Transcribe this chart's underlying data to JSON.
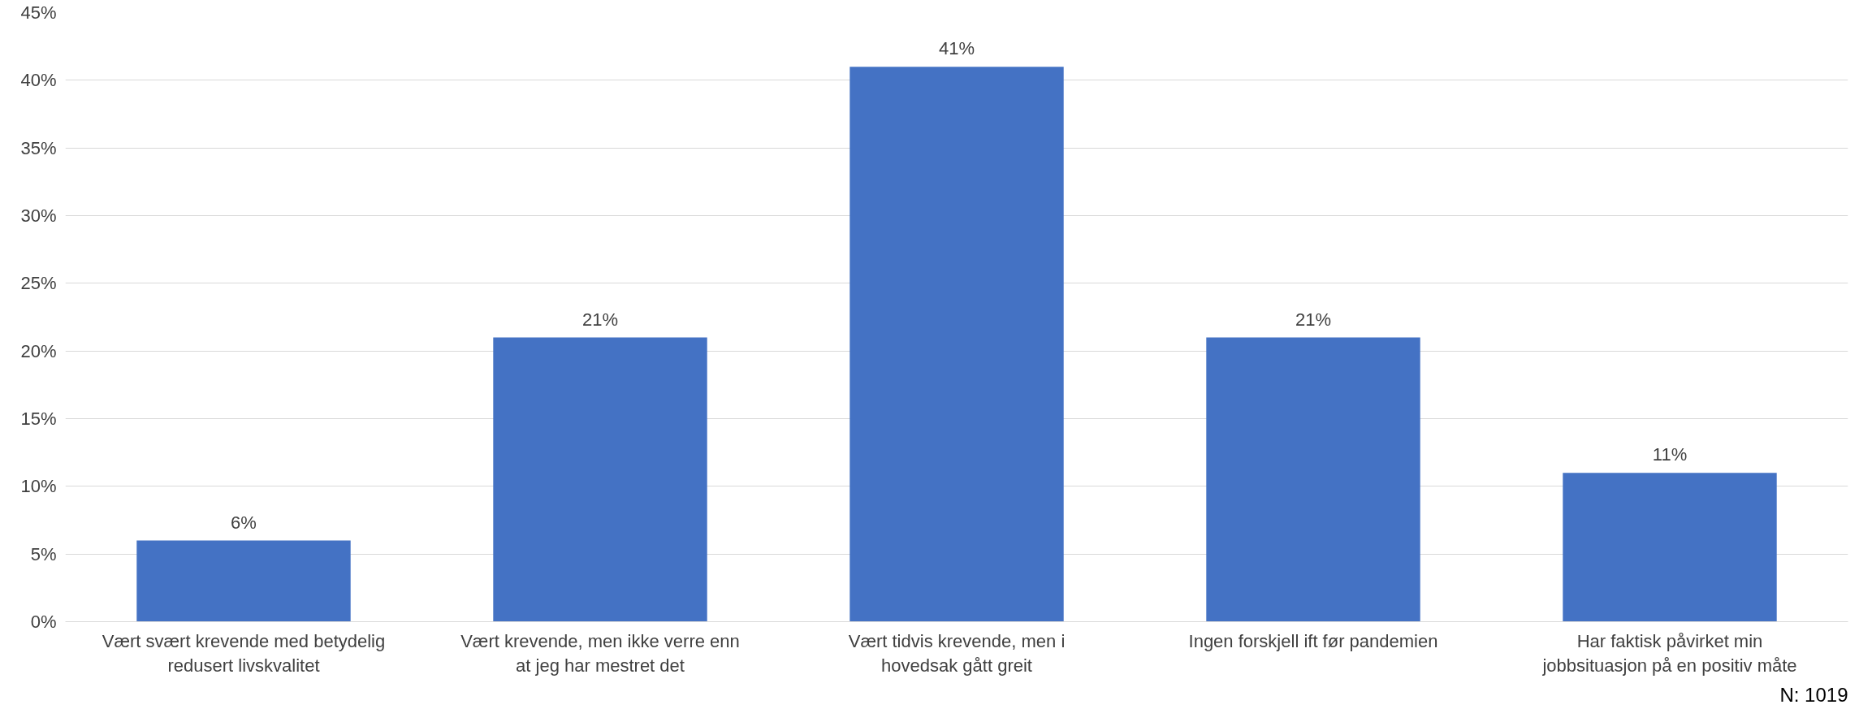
{
  "chart_data": {
    "type": "bar",
    "categories": [
      "Vært svært krevende med betydelig redusert livskvalitet",
      "Vært krevende, men ikke verre enn at jeg har mestret det",
      "Vært tidvis krevende, men i hovedsak gått greit",
      "Ingen forskjell ift før pandemien",
      "Har faktisk påvirket min jobbsituasjon på en positiv måte"
    ],
    "values": [
      6,
      21,
      41,
      21,
      11
    ],
    "color": "#4472c4",
    "ylim": [
      0,
      45
    ],
    "yticks": [
      {
        "value": 0,
        "label": "0%"
      },
      {
        "value": 5,
        "label": "5%"
      },
      {
        "value": 10,
        "label": "10%"
      },
      {
        "value": 15,
        "label": "15%"
      },
      {
        "value": 20,
        "label": "20%"
      },
      {
        "value": 25,
        "label": "25%"
      },
      {
        "value": 30,
        "label": "30%"
      },
      {
        "value": 35,
        "label": "35%"
      },
      {
        "value": 40,
        "label": "40%"
      },
      {
        "value": 45,
        "label": "45%"
      }
    ],
    "grid": "y",
    "value_labels": [
      "6%",
      "21%",
      "41%",
      "21%",
      "11%"
    ],
    "annotations": [
      "N: 1019"
    ]
  }
}
